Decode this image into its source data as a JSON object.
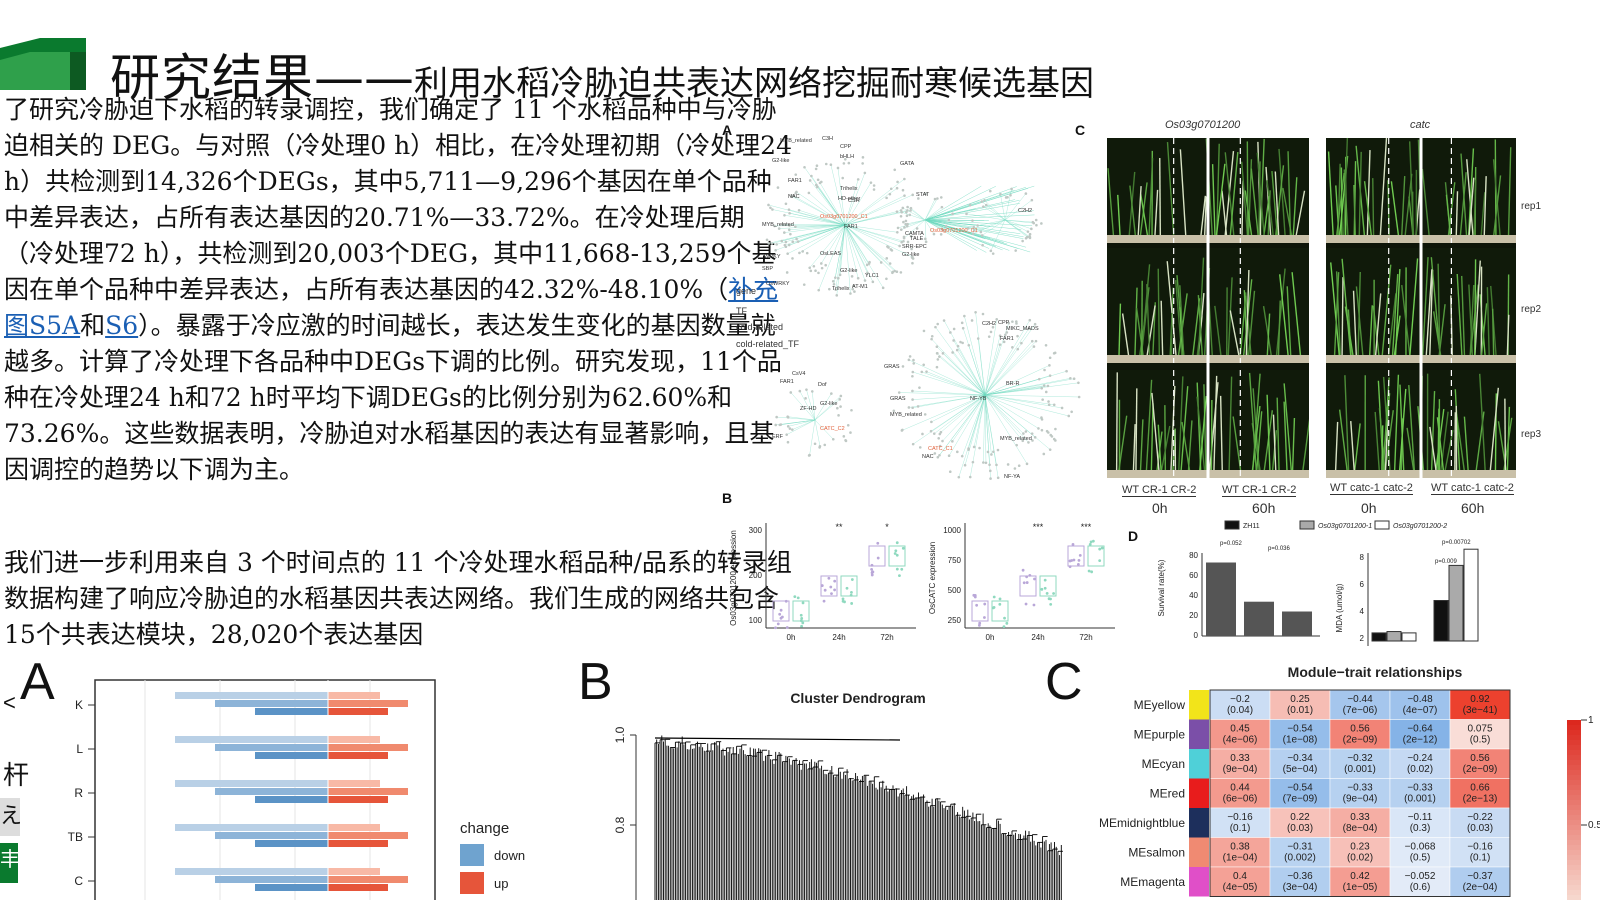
{
  "title": {
    "main": "研究结果",
    "dash": "——",
    "sub": "利用水稻冷胁迫共表达网络挖掘耐寒候选基因"
  },
  "paragraph1": {
    "text": "了研究冷胁迫下水稻的转录调控，我们确定了 11 个水稻品种中与冷胁迫相关的 DEG。与对照（冷处理0 h）相比，在冷处理初期（冷处理24 h）共检测到14,326个DEGs，其中5,711—9,296个基因在单个品种中差异表达，占所有表达基因的20.71%—33.72%。在冷处理后期（冷处理72 h），共检测到20,003个DEG，其中11,668-13,259个基因在单个品种中差异表达，占所有表达基因的42.32%-48.10%（",
    "link1": "补充图S5A",
    "mid": "和",
    "link2": "S6",
    "rest": "）。暴露于冷应激的时间越长，表达发生变化的基因数量就越多。计算了冷处理下各品种中DEGs下调的比例。研究发现，11个品种在冷处理24 h和72 h时平均下调DEGs的比例分别为62.60%和73.26%。这些数据表明，冷胁迫对水稻基因的表达有显著影响，且基因调控的趋势以下调为主。"
  },
  "paragraph2": {
    "text": "我们进一步利用来自 3 个时间点的 11 个冷处理水稻品种/品系的转录组数据构建了响应冷胁迫的水稻基因共表达网络。我们生成的网络共包含15个共表达模块，28,020个表达基因"
  },
  "figure_top": {
    "panel_a": "A",
    "panel_b": "B",
    "panel_c": "C",
    "panel_d": "D",
    "network_nodes": [
      "MYB_related",
      "C3H",
      "CPP",
      "G2-like",
      "bHLH",
      "GATA",
      "FAR1",
      "Trihelix",
      "HD-other",
      "CSH",
      "NAC",
      "Os03g0701200_C1",
      "FAR1",
      "STAT",
      "C2H2",
      "CAMTA",
      "TALE",
      "SRR-EPC",
      "G2-like",
      "Os03g0701200_C1",
      "MYB_related",
      "OsLEAS",
      "WRKY",
      "SBP",
      "G2-like",
      "YLC1",
      "OsWRKY",
      "Trihelix",
      "AT-M1",
      "BR-R",
      "CPP",
      "MIKC_MADS",
      "FAR1",
      "C2H2",
      "CsV4",
      "FAR1",
      "Dof",
      "ZF-HD",
      "G2-like",
      "CATC_C2",
      "ERF",
      "GRAS",
      "GRAS",
      "MYB_related",
      "NF-YB",
      "MYB_related",
      "CATC_C1",
      "NAC",
      "NF-YA",
      "C2H2",
      "B3"
    ],
    "legend_gene": "gene",
    "legend_tf": "TF",
    "legend_cold": "cold-related",
    "legend_cold_tf": "cold-related_TF",
    "photo_col1_title": "Os03g0701200",
    "photo_col2_title": "catc",
    "rep_labels": [
      "rep1",
      "rep2",
      "rep3"
    ],
    "photo_bottom_left_1": "WT  CR-1 CR-2",
    "photo_bottom_left_2": "WT  CR-1 CR-2",
    "photo_bottom_right_1": "WT  catc-1 catc-2",
    "photo_bottom_right_2": "WT  catc-1 catc-2",
    "time_0h": "0h",
    "time_60h": "60h",
    "box1_ylabel": "Os03g0701200 expression",
    "box1_yticks": [
      "300",
      "200",
      "100"
    ],
    "box1_sig": [
      "**",
      "*"
    ],
    "box2_ylabel": "OsCATC expression",
    "box2_yticks": [
      "1000",
      "750",
      "500",
      "250"
    ],
    "box2_sig": [
      "***",
      "***"
    ],
    "box_xticks": [
      "0h",
      "24h",
      "72h"
    ],
    "d_legend": [
      "ZH11",
      "Os03g0701200-1",
      "Os03g0701200-2"
    ],
    "d_survival_ylabel": "Survival rate(%)",
    "d_survival_yticks": [
      "80",
      "60",
      "40",
      "20",
      "0"
    ],
    "d_survival_p": [
      "p=0.052",
      "p=0.036"
    ],
    "d_mda_ylabel": "MDA (umol/g)",
    "d_mda_yticks": [
      "8",
      "6",
      "4",
      "2"
    ],
    "d_mda_p": [
      "p=0.00702",
      "p=0.009"
    ]
  },
  "figure_bottom": {
    "panel_a": "A",
    "panel_b": "B",
    "panel_c": "C",
    "a_rows": [
      "K",
      "L",
      "R",
      "TB",
      "C"
    ],
    "a_legend_title": "change",
    "a_legend": [
      "down",
      "up"
    ],
    "b_title": "Cluster Dendrogram",
    "b_yticks": [
      "1.0",
      "0.8"
    ],
    "c_title": "Module−trait relationships",
    "c_scale": [
      "1",
      "0.5"
    ],
    "c_rows": [
      {
        "name": "MEyellow",
        "color": "#f2e41a",
        "cells": [
          [
            "−0.2",
            "(0.04)"
          ],
          [
            "0.25",
            "(0.01)"
          ],
          [
            "−0.44",
            "(7e−06)"
          ],
          [
            "−0.48",
            "(4e−07)"
          ],
          [
            "0.92",
            "(3e−41)"
          ]
        ]
      },
      {
        "name": "MEpurple",
        "color": "#7b4fa8",
        "cells": [
          [
            "0.45",
            "(4e−06)"
          ],
          [
            "−0.54",
            "(1e−08)"
          ],
          [
            "0.56",
            "(2e−09)"
          ],
          [
            "−0.64",
            "(2e−12)"
          ],
          [
            "0.075",
            "(0.5)"
          ]
        ]
      },
      {
        "name": "MEcyan",
        "color": "#4fd0d8",
        "cells": [
          [
            "0.33",
            "(9e−04)"
          ],
          [
            "−0.34",
            "(5e−04)"
          ],
          [
            "−0.32",
            "(0.001)"
          ],
          [
            "−0.24",
            "(0.02)"
          ],
          [
            "0.56",
            "(2e−09)"
          ]
        ]
      },
      {
        "name": "MEred",
        "color": "#e81c1c",
        "cells": [
          [
            "0.44",
            "(6e−06)"
          ],
          [
            "−0.54",
            "(7e−09)"
          ],
          [
            "−0.33",
            "(9e−04)"
          ],
          [
            "−0.33",
            "(0.001)"
          ],
          [
            "0.66",
            "(2e−13)"
          ]
        ]
      },
      {
        "name": "MEmidnightblue",
        "color": "#1d2f5c",
        "cells": [
          [
            "−0.16",
            "(0.1)"
          ],
          [
            "0.22",
            "(0.03)"
          ],
          [
            "0.33",
            "(8e−04)"
          ],
          [
            "−0.11",
            "(0.3)"
          ],
          [
            "−0.22",
            "(0.03)"
          ]
        ]
      },
      {
        "name": "MEsalmon",
        "color": "#f08a72",
        "cells": [
          [
            "0.38",
            "(1e−04)"
          ],
          [
            "−0.31",
            "(0.002)"
          ],
          [
            "0.23",
            "(0.02)"
          ],
          [
            "−0.068",
            "(0.5)"
          ],
          [
            "−0.16",
            "(0.1)"
          ]
        ]
      },
      {
        "name": "MEmagenta",
        "color": "#e04fc8",
        "cells": [
          [
            "0.4",
            "(4e−05)"
          ],
          [
            "−0.36",
            "(3e−04)"
          ],
          [
            "0.42",
            "(1e−05)"
          ],
          [
            "−0.052",
            "(0.6)"
          ],
          [
            "−0.37",
            "(2e−04)"
          ]
        ]
      }
    ],
    "left_fragments": [
      "<",
      "杆",
      "え",
      "]",
      "丰"
    ]
  }
}
